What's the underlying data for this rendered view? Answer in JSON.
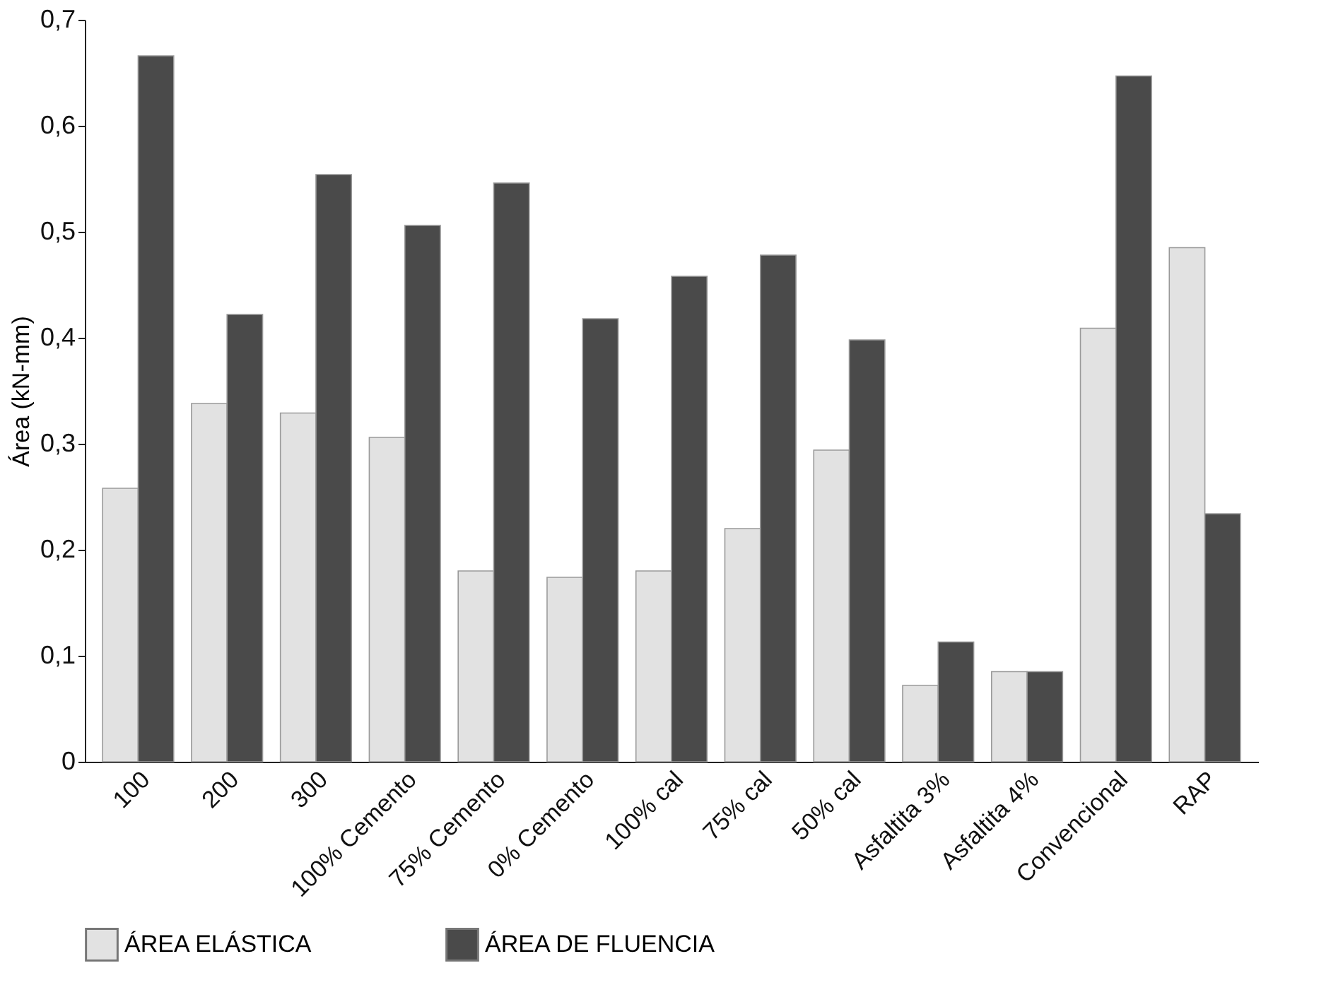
{
  "chart_data": {
    "type": "bar",
    "ylabel": "Área (kN-mm)",
    "categories": [
      "100",
      "200",
      "300",
      "100% Cemento",
      "75% Cemento",
      "0% Cemento",
      "100% cal",
      "75% cal",
      "50% cal",
      "Asfaltita 3%",
      "Asfaltita 4%",
      "Convencional",
      "RAP"
    ],
    "series": [
      {
        "name": "ÁREA ELÁSTICA",
        "color": "#e2e2e2",
        "values": [
          0.258,
          0.338,
          0.329,
          0.306,
          0.18,
          0.174,
          0.18,
          0.22,
          0.294,
          0.072,
          0.085,
          0.409,
          0.485
        ]
      },
      {
        "name": "ÁREA DE FLUENCIA",
        "color": "#4a4a4a",
        "values": [
          0.666,
          0.422,
          0.554,
          0.506,
          0.546,
          0.418,
          0.458,
          0.478,
          0.398,
          0.113,
          0.085,
          0.647,
          0.234
        ]
      }
    ],
    "ylim": [
      0,
      0.7
    ],
    "yticks": [
      0,
      {
        "value": 0.1,
        "label": "0,1"
      },
      {
        "value": 0.2,
        "label": "0,2"
      },
      {
        "value": 0.3,
        "label": "0,3"
      },
      {
        "value": 0.4,
        "label": "0,4"
      },
      {
        "value": 0.5,
        "label": "0,5"
      },
      {
        "value": 0.6,
        "label": "0,6"
      },
      {
        "value": 0.7,
        "label": "0,7"
      }
    ],
    "grid": false,
    "legend": "bottom"
  }
}
